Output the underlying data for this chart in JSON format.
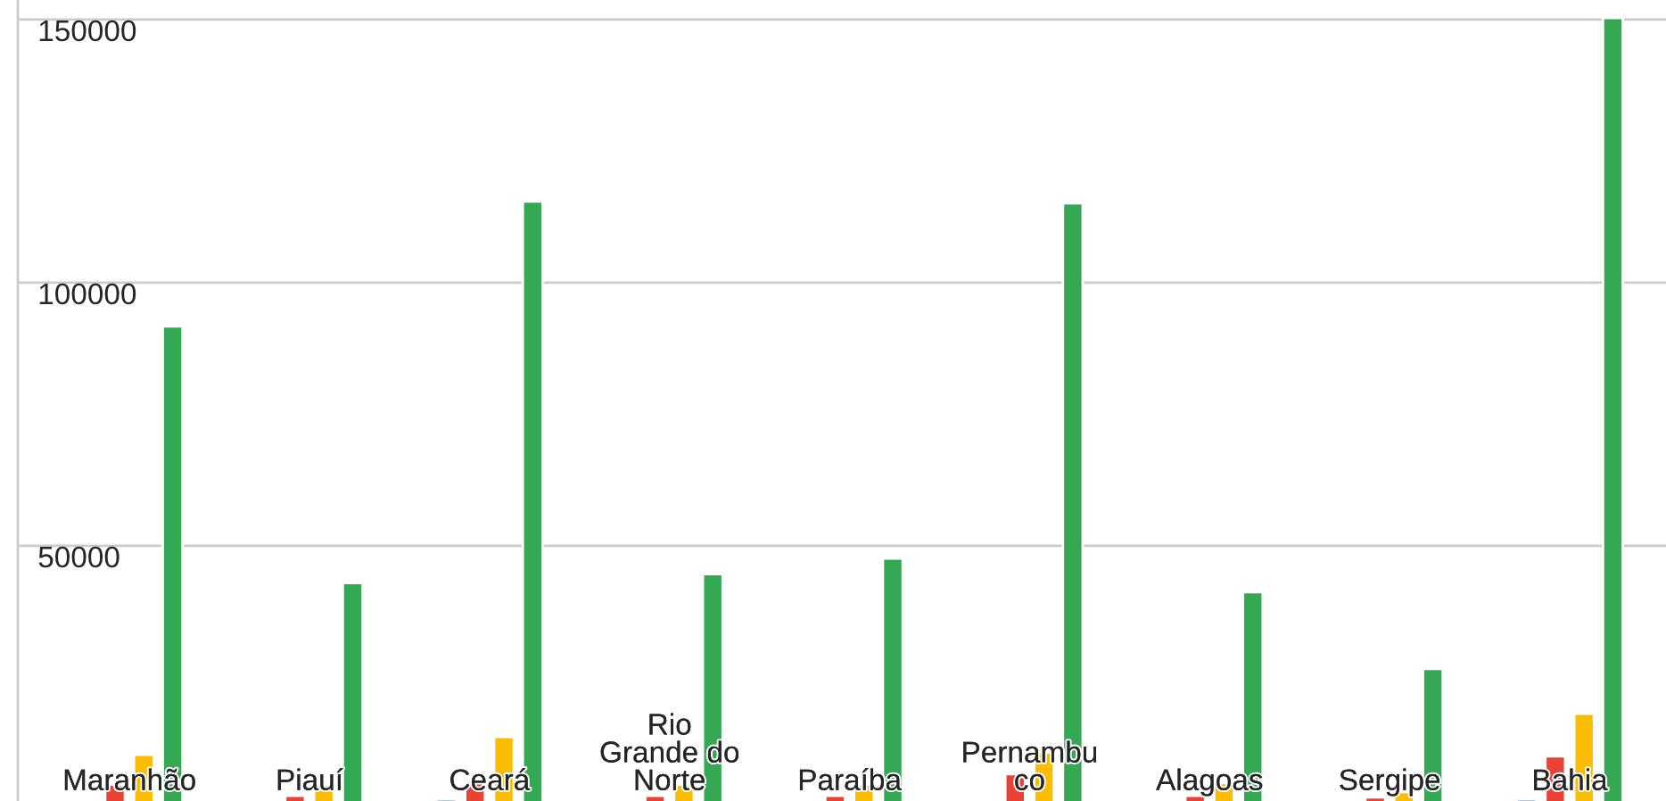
{
  "chart_data": {
    "type": "bar",
    "categories": [
      "Maranhão",
      "Piauí",
      "Ceará",
      "Rio\nGrande do\nNorte",
      "Paraíba",
      "Pernambu\nco",
      "Alagoas",
      "Sergipe",
      "Bahia"
    ],
    "series": [
      {
        "color": "#4285f4",
        "values": [
          null,
          null,
          1800,
          null,
          null,
          null,
          null,
          null,
          1800
        ]
      },
      {
        "color": "#ea4335",
        "values": [
          4600,
          2500,
          5300,
          2500,
          2500,
          6600,
          2500,
          2200,
          10000
        ]
      },
      {
        "color": "#fbbc04",
        "values": [
          10300,
          4600,
          13700,
          4600,
          4600,
          10700,
          4900,
          3200,
          18100
        ]
      },
      {
        "color": "#34a853",
        "values": [
          91700,
          42900,
          115400,
          44600,
          47600,
          115100,
          41200,
          26600,
          150300
        ]
      }
    ],
    "ylim": [
      1500,
      153700
    ],
    "yticks": [
      50000,
      100000,
      150000
    ],
    "grid": "y"
  }
}
